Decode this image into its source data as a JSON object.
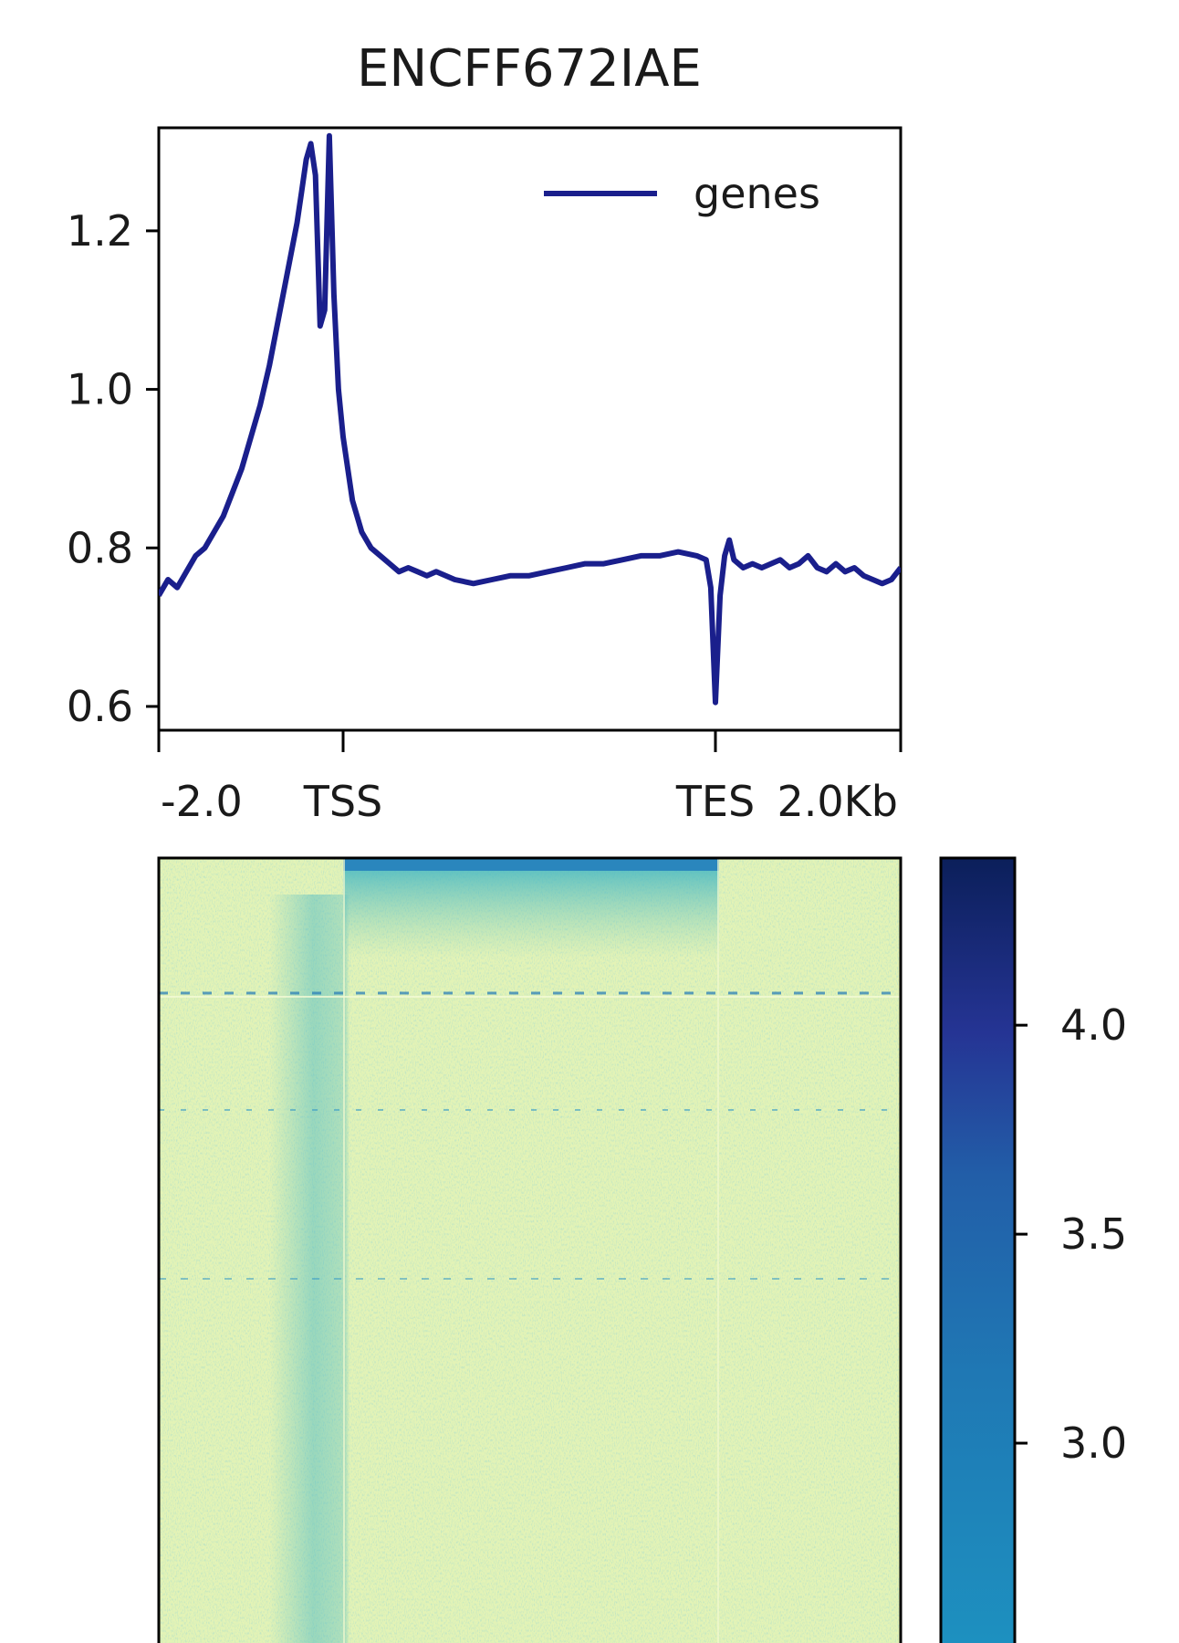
{
  "chart_data": [
    {
      "type": "line",
      "title": "ENCFF672IAE",
      "xlabel": "",
      "ylabel": "",
      "x_tick_labels": [
        "-2.0",
        "TSS",
        "TES",
        "2.0Kb"
      ],
      "y_tick_labels": [
        "0.6",
        "0.8",
        "1.0",
        "1.2"
      ],
      "ylim": [
        0.57,
        1.33
      ],
      "legend": {
        "position": "top-right",
        "entries": [
          "genes"
        ]
      },
      "series": [
        {
          "name": "genes",
          "color": "#1a1f8c",
          "x": [
            -2.0,
            -1.9,
            -1.8,
            -1.7,
            -1.6,
            -1.5,
            -1.4,
            -1.3,
            -1.2,
            -1.1,
            -1.0,
            -0.9,
            -0.8,
            -0.7,
            -0.6,
            -0.5,
            -0.45,
            -0.4,
            -0.35,
            -0.3,
            -0.25,
            -0.2,
            -0.15,
            -0.1,
            -0.05,
            0.0,
            0.05,
            0.1,
            0.15,
            0.2,
            0.25,
            0.3,
            0.4,
            0.5,
            0.6,
            0.7,
            0.8,
            0.9,
            1.0,
            1.2,
            1.4,
            1.6,
            1.8,
            2.0,
            2.2,
            2.4,
            2.6,
            2.8,
            3.0,
            3.2,
            3.4,
            3.6,
            3.8,
            3.9,
            3.95,
            4.0,
            4.05,
            4.1,
            4.15,
            4.2,
            4.3,
            4.4,
            4.5,
            4.6,
            4.7,
            4.8,
            4.9,
            5.0,
            5.1,
            5.2,
            5.3,
            5.4,
            5.5,
            5.6,
            5.7,
            5.8,
            5.9,
            6.0
          ],
          "values": [
            0.74,
            0.76,
            0.75,
            0.77,
            0.79,
            0.8,
            0.82,
            0.84,
            0.87,
            0.9,
            0.94,
            0.98,
            1.03,
            1.09,
            1.15,
            1.21,
            1.25,
            1.29,
            1.31,
            1.27,
            1.08,
            1.1,
            1.32,
            1.12,
            1.0,
            0.94,
            0.9,
            0.86,
            0.84,
            0.82,
            0.81,
            0.8,
            0.79,
            0.78,
            0.77,
            0.775,
            0.77,
            0.765,
            0.77,
            0.76,
            0.755,
            0.76,
            0.765,
            0.765,
            0.77,
            0.775,
            0.78,
            0.78,
            0.785,
            0.79,
            0.79,
            0.795,
            0.79,
            0.785,
            0.75,
            0.605,
            0.74,
            0.79,
            0.81,
            0.785,
            0.775,
            0.78,
            0.775,
            0.78,
            0.785,
            0.775,
            0.78,
            0.79,
            0.775,
            0.77,
            0.78,
            0.77,
            0.775,
            0.765,
            0.76,
            0.755,
            0.76,
            0.775
          ]
        }
      ]
    },
    {
      "type": "heatmap",
      "colorscale": [
        "#ffffd9",
        "#edf8b1",
        "#c7e9b4",
        "#7fcdbb",
        "#41b6c4",
        "#1d91c0",
        "#225ea8",
        "#253494",
        "#081d58"
      ],
      "colorbar": {
        "ticks": [
          3.0,
          3.5,
          4.0
        ],
        "tick_labels": [
          "3.0",
          "3.5",
          "4.0"
        ],
        "range": [
          2.5,
          4.4
        ]
      }
    }
  ]
}
